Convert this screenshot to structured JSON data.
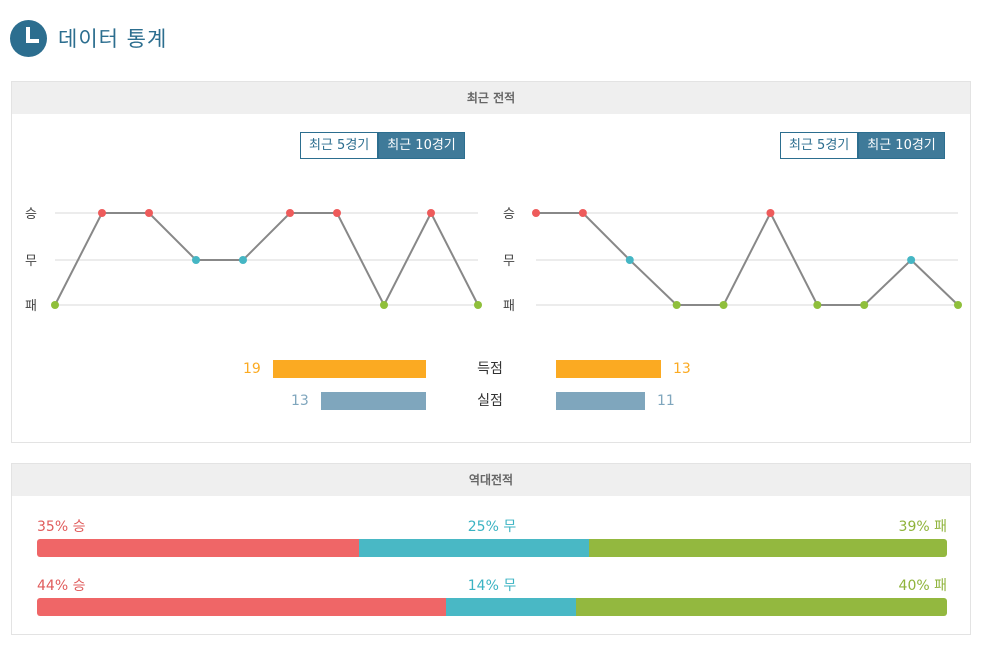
{
  "header": {
    "title": "데이터 통계"
  },
  "recent": {
    "section_title": "최근 전적",
    "left": {
      "buttons": [
        "최근 5경기",
        "최근 10경기"
      ],
      "results": [
        "패",
        "승",
        "승",
        "무",
        "무",
        "승",
        "승",
        "패",
        "승",
        "패"
      ]
    },
    "right": {
      "buttons": [
        "최근 5경기",
        "최근 10경기"
      ],
      "results": [
        "승",
        "승",
        "무",
        "패",
        "패",
        "승",
        "패",
        "패",
        "무",
        "패"
      ]
    },
    "y_labels": [
      "승",
      "무",
      "패"
    ],
    "colors": {
      "win": "#ee5b5b",
      "draw": "#45b6c4",
      "loss": "#8fbf3b",
      "line": "#888888",
      "grid": "#d8d8d8"
    },
    "stats": {
      "scored": {
        "label": "득점",
        "left": 19,
        "right": 13,
        "color": "#fbaa22"
      },
      "conceded": {
        "label": "실점",
        "left": 13,
        "right": 11,
        "color": "#7fa6bd"
      }
    }
  },
  "h2h": {
    "section_title": "역대전적",
    "rows": [
      {
        "win_label": "35% 승",
        "draw_label": "25% 무",
        "loss_label": "39% 패",
        "win": 35,
        "draw": 25,
        "loss": 39
      },
      {
        "win_label": "44% 승",
        "draw_label": "14% 무",
        "loss_label": "40% 패",
        "win": 44,
        "draw": 14,
        "loss": 40
      }
    ]
  }
}
